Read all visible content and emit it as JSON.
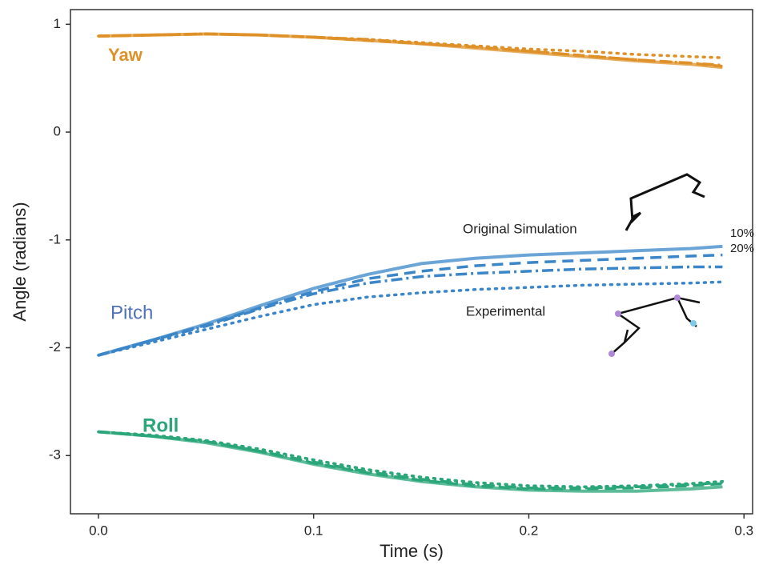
{
  "chart_data": {
    "type": "line",
    "x_label": "Time (s)",
    "y_label": "Angle (radians)",
    "xlim": [
      -0.013,
      0.304
    ],
    "ylim": [
      -3.54,
      1.136
    ],
    "xticks": [
      {
        "value": 0,
        "label": "0.0"
      },
      0.1,
      0.2,
      0.3
    ],
    "yticks": [
      1,
      0,
      -1,
      -2,
      -3
    ],
    "grid": false,
    "x": [
      0,
      0.025,
      0.05,
      0.075,
      0.1,
      0.125,
      0.15,
      0.175,
      0.2,
      0.225,
      0.25,
      0.275,
      0.29
    ],
    "series": [
      {
        "color": "#df9129",
        "style": "solid",
        "values": [
          0.89,
          0.9,
          0.91,
          0.9,
          0.88,
          0.85,
          0.82,
          0.78,
          0.74,
          0.7,
          0.66,
          0.63,
          0.6
        ]
      },
      {
        "color": "#df9129",
        "style": "dashed",
        "values": [
          0.89,
          0.9,
          0.91,
          0.9,
          0.88,
          0.85,
          0.82,
          0.79,
          0.75,
          0.71,
          0.67,
          0.64,
          0.61
        ]
      },
      {
        "color": "#df9129",
        "style": "dashdot",
        "values": [
          0.89,
          0.9,
          0.91,
          0.9,
          0.88,
          0.86,
          0.82,
          0.79,
          0.75,
          0.71,
          0.67,
          0.64,
          0.62
        ]
      },
      {
        "color": "#df9129",
        "style": "dotted",
        "values": [
          0.89,
          0.9,
          0.91,
          0.9,
          0.88,
          0.86,
          0.83,
          0.8,
          0.77,
          0.75,
          0.72,
          0.7,
          0.69
        ]
      },
      {
        "color": "#3a86c8",
        "style": "solid",
        "values": [
          -2.07,
          -1.93,
          -1.78,
          -1.61,
          -1.45,
          -1.32,
          -1.22,
          -1.17,
          -1.14,
          -1.12,
          -1.1,
          -1.08,
          -1.06
        ]
      },
      {
        "color": "#3a86c8",
        "style": "dashed",
        "values": [
          -2.07,
          -1.93,
          -1.79,
          -1.63,
          -1.48,
          -1.36,
          -1.29,
          -1.24,
          -1.21,
          -1.19,
          -1.17,
          -1.15,
          -1.14
        ]
      },
      {
        "color": "#3a86c8",
        "style": "dashdot",
        "values": [
          -2.07,
          -1.93,
          -1.8,
          -1.64,
          -1.5,
          -1.4,
          -1.34,
          -1.31,
          -1.29,
          -1.27,
          -1.26,
          -1.25,
          -1.25
        ]
      },
      {
        "color": "#3a86c8",
        "style": "dotted",
        "values": [
          -2.07,
          -1.95,
          -1.83,
          -1.71,
          -1.6,
          -1.53,
          -1.49,
          -1.46,
          -1.44,
          -1.42,
          -1.41,
          -1.4,
          -1.39
        ]
      },
      {
        "color": "#2aa67a",
        "style": "solid",
        "values": [
          -2.78,
          -2.82,
          -2.88,
          -2.97,
          -3.08,
          -3.17,
          -3.24,
          -3.29,
          -3.32,
          -3.33,
          -3.33,
          -3.31,
          -3.29
        ]
      },
      {
        "color": "#2aa67a",
        "style": "dashed",
        "values": [
          -2.78,
          -2.82,
          -2.87,
          -2.96,
          -3.07,
          -3.16,
          -3.23,
          -3.28,
          -3.31,
          -3.31,
          -3.3,
          -3.28,
          -3.26
        ]
      },
      {
        "color": "#2aa67a",
        "style": "dashdot",
        "values": [
          -2.78,
          -2.82,
          -2.87,
          -2.96,
          -3.06,
          -3.15,
          -3.22,
          -3.27,
          -3.3,
          -3.3,
          -3.29,
          -3.27,
          -3.25
        ]
      },
      {
        "color": "#2aa67a",
        "style": "dotted",
        "values": [
          -2.78,
          -2.81,
          -2.86,
          -2.94,
          -3.04,
          -3.13,
          -3.2,
          -3.25,
          -3.28,
          -3.29,
          -3.28,
          -3.26,
          -3.24
        ]
      }
    ],
    "annotations": [
      {
        "text": "Yaw",
        "color": "#df9129"
      },
      {
        "text": "Pitch",
        "color": "#4f72b8"
      },
      {
        "text": "Roll",
        "color": "#2aa67a"
      },
      {
        "text": "Original Simulation",
        "color": "#222222"
      },
      {
        "text": "10%",
        "color": "#222222"
      },
      {
        "text": "20%",
        "color": "#222222"
      },
      {
        "text": "Experimental",
        "color": "#222222"
      }
    ]
  }
}
